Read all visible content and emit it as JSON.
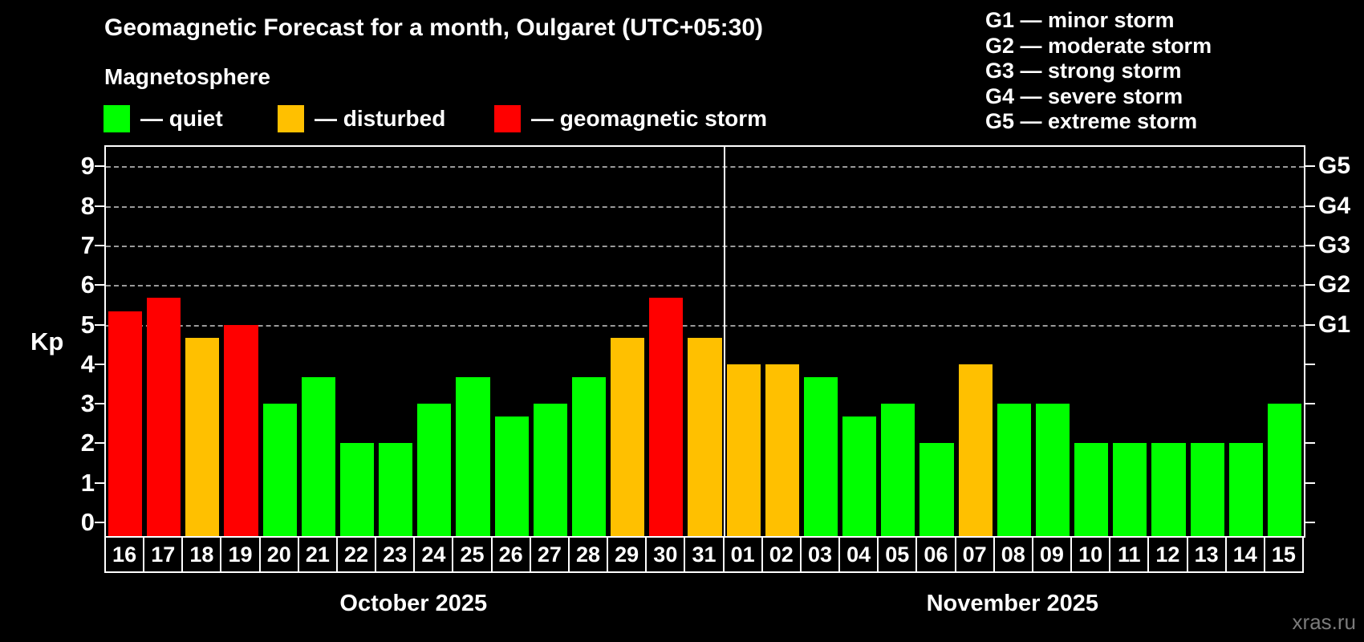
{
  "title": "Geomagnetic Forecast for a month, Oulgaret (UTC+05:30)",
  "subtitle": "Magnetosphere",
  "legend": {
    "quiet": "— quiet",
    "disturbed": "— disturbed",
    "storm": "— geomagnetic storm"
  },
  "g_legend": [
    "G1 — minor storm",
    "G2 — moderate storm",
    "G3 — strong storm",
    "G4 — severe storm",
    "G5 — extreme storm"
  ],
  "axis": {
    "y_label": "Kp",
    "y_ticks": [
      0,
      1,
      2,
      3,
      4,
      5,
      6,
      7,
      8,
      9
    ],
    "g_ticks": [
      {
        "kp": 5,
        "label": "G1"
      },
      {
        "kp": 6,
        "label": "G2"
      },
      {
        "kp": 7,
        "label": "G3"
      },
      {
        "kp": 8,
        "label": "G4"
      },
      {
        "kp": 9,
        "label": "G5"
      }
    ]
  },
  "months": [
    {
      "label": "October 2025",
      "day_count": 16
    },
    {
      "label": "November 2025",
      "day_count": 15
    }
  ],
  "watermark": "xras.ru",
  "chart_data": {
    "type": "bar",
    "title": "Geomagnetic Forecast for a month, Oulgaret (UTC+05:30)",
    "xlabel": "",
    "ylabel": "Kp",
    "ylim": [
      0,
      9
    ],
    "gridlines_at": [
      5,
      6,
      7,
      8,
      9
    ],
    "grid": "dashed horizontal at G-storm levels only",
    "legend_position": "top-left swatches, G-scale list top-right",
    "colors": {
      "quiet": "#00ff00",
      "disturbed": "#ffc000",
      "storm": "#ff0000"
    },
    "series": [
      {
        "name": "October 2025",
        "days": [
          {
            "day": "16",
            "kp": 5.33,
            "level": "storm"
          },
          {
            "day": "17",
            "kp": 5.67,
            "level": "storm"
          },
          {
            "day": "18",
            "kp": 4.67,
            "level": "disturbed"
          },
          {
            "day": "19",
            "kp": 5.0,
            "level": "storm"
          },
          {
            "day": "20",
            "kp": 3.0,
            "level": "quiet"
          },
          {
            "day": "21",
            "kp": 3.67,
            "level": "quiet"
          },
          {
            "day": "22",
            "kp": 2.0,
            "level": "quiet"
          },
          {
            "day": "23",
            "kp": 2.0,
            "level": "quiet"
          },
          {
            "day": "24",
            "kp": 3.0,
            "level": "quiet"
          },
          {
            "day": "25",
            "kp": 3.67,
            "level": "quiet"
          },
          {
            "day": "26",
            "kp": 2.67,
            "level": "quiet"
          },
          {
            "day": "27",
            "kp": 3.0,
            "level": "quiet"
          },
          {
            "day": "28",
            "kp": 3.67,
            "level": "quiet"
          },
          {
            "day": "29",
            "kp": 4.67,
            "level": "disturbed"
          },
          {
            "day": "30",
            "kp": 5.67,
            "level": "storm"
          },
          {
            "day": "31",
            "kp": 4.67,
            "level": "disturbed"
          }
        ]
      },
      {
        "name": "November 2025",
        "days": [
          {
            "day": "01",
            "kp": 4.0,
            "level": "disturbed"
          },
          {
            "day": "02",
            "kp": 4.0,
            "level": "disturbed"
          },
          {
            "day": "03",
            "kp": 3.67,
            "level": "quiet"
          },
          {
            "day": "04",
            "kp": 2.67,
            "level": "quiet"
          },
          {
            "day": "05",
            "kp": 3.0,
            "level": "quiet"
          },
          {
            "day": "06",
            "kp": 2.0,
            "level": "quiet"
          },
          {
            "day": "07",
            "kp": 4.0,
            "level": "disturbed"
          },
          {
            "day": "08",
            "kp": 3.0,
            "level": "quiet"
          },
          {
            "day": "09",
            "kp": 3.0,
            "level": "quiet"
          },
          {
            "day": "10",
            "kp": 2.0,
            "level": "quiet"
          },
          {
            "day": "11",
            "kp": 2.0,
            "level": "quiet"
          },
          {
            "day": "12",
            "kp": 2.0,
            "level": "quiet"
          },
          {
            "day": "13",
            "kp": 2.0,
            "level": "quiet"
          },
          {
            "day": "14",
            "kp": 2.0,
            "level": "quiet"
          },
          {
            "day": "15",
            "kp": 3.0,
            "level": "quiet"
          }
        ]
      }
    ]
  }
}
